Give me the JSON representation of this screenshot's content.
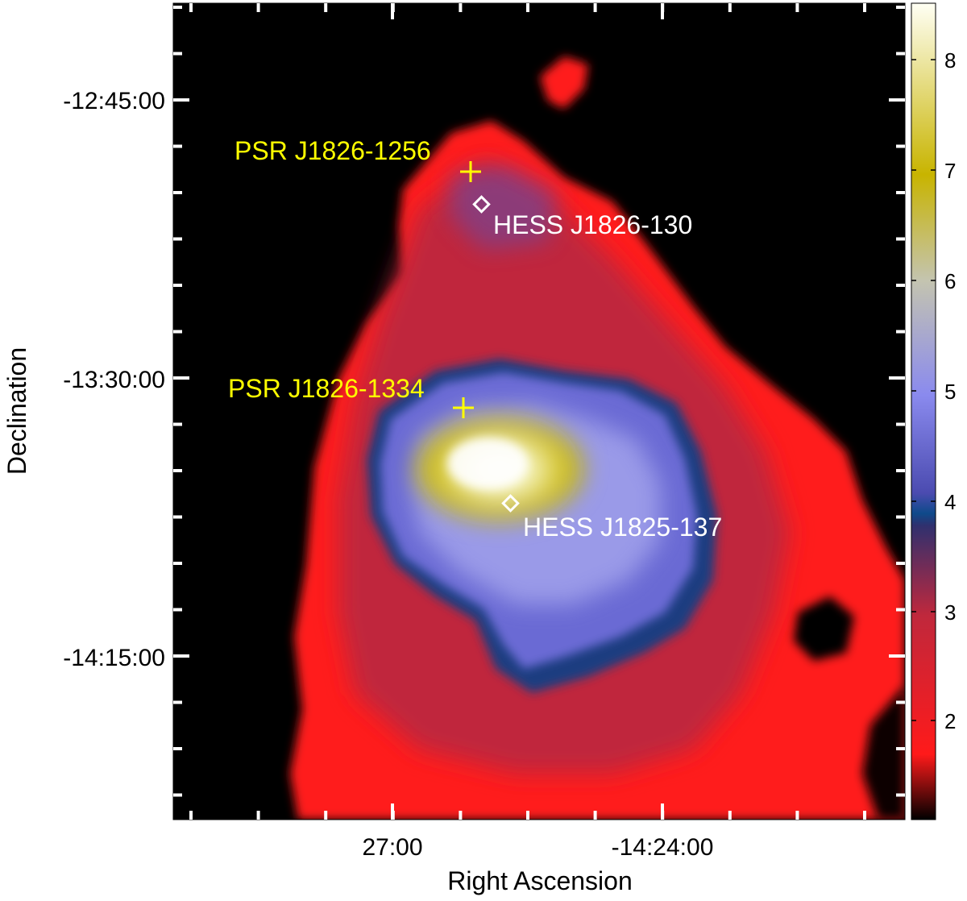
{
  "figure": {
    "axes": {
      "x_title": "Right Ascension",
      "y_title": "Declination",
      "x_tick_labels": [
        "27:00",
        "-14:24:00"
      ],
      "y_tick_labels": [
        "-12:45:00",
        "-13:30:00",
        "-14:15:00"
      ]
    },
    "colorbar": {
      "tick_labels": [
        "2",
        "3",
        "4",
        "5",
        "6",
        "7",
        "8"
      ]
    },
    "sources": {
      "pulsar_1": "PSR J1826-1256",
      "pulsar_2": "PSR J1826-1334",
      "hess_1": "HESS J1826-130",
      "hess_2": "HESS J1825-137"
    },
    "colors": {
      "background": "#000000",
      "pulsar_marker": "#ffff00",
      "hess_marker": "#ffffff"
    },
    "colormap_stops": [
      "#000000",
      "#ff1a1a",
      "#cc2a3a",
      "#2e2e70",
      "#0e4a8a",
      "#5c5cc8",
      "#8a8ae8",
      "#c8c8b8",
      "#c8b400",
      "#fffff0"
    ]
  }
}
